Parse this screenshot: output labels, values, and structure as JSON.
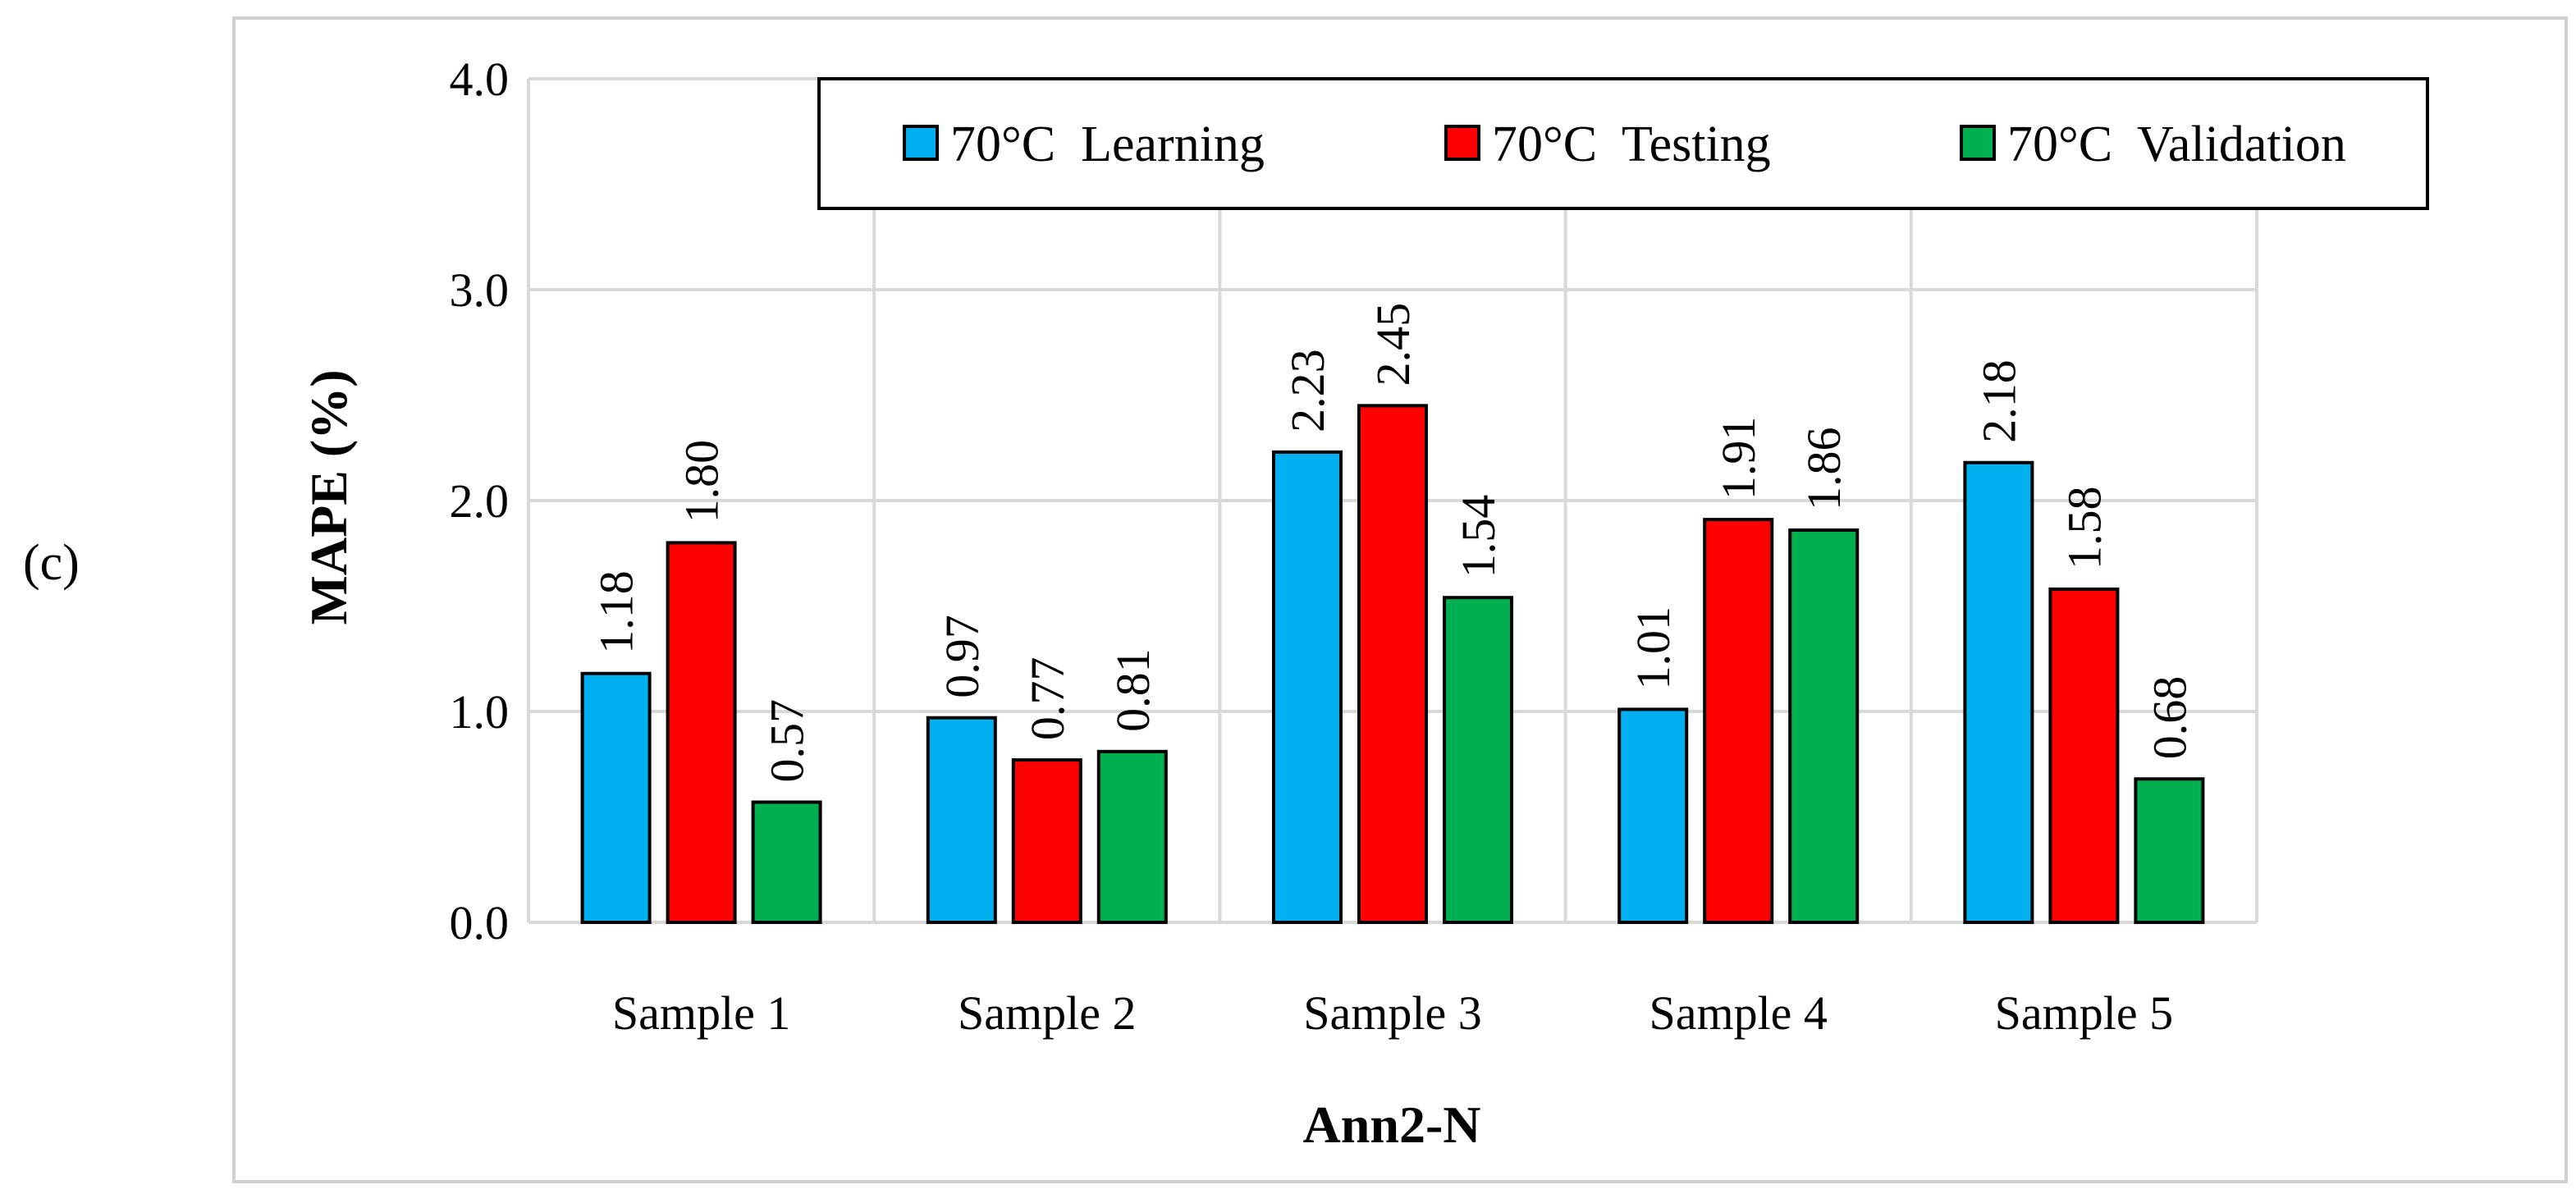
{
  "panel_label": "(c)",
  "chart_data": {
    "type": "bar",
    "title": "",
    "xlabel": "Ann2-N",
    "ylabel": "MAPE (%)",
    "ylim": [
      0,
      4
    ],
    "yticks": [
      "0.0",
      "1.0",
      "2.0",
      "3.0",
      "4.0"
    ],
    "grid": true,
    "legend_position": "top-right",
    "categories": [
      "Sample 1",
      "Sample 2",
      "Sample 3",
      "Sample 4",
      "Sample 5"
    ],
    "series": [
      {
        "name": "70°C  Learning",
        "color": "#00b0f0",
        "values": [
          1.18,
          0.97,
          2.23,
          1.01,
          2.18
        ],
        "labels": [
          "1.18",
          "0.97",
          "2.23",
          "1.01",
          "2.18"
        ]
      },
      {
        "name": "70°C  Testing",
        "color": "#ff0000",
        "values": [
          1.8,
          0.77,
          2.45,
          1.91,
          1.58
        ],
        "labels": [
          "1.80",
          "0.77",
          "2.45",
          "1.91",
          "1.58"
        ]
      },
      {
        "name": "70°C  Validation",
        "color": "#00b050",
        "values": [
          0.57,
          0.81,
          1.54,
          1.86,
          0.68
        ],
        "labels": [
          "0.57",
          "0.81",
          "1.54",
          "1.86",
          "0.68"
        ]
      }
    ]
  }
}
